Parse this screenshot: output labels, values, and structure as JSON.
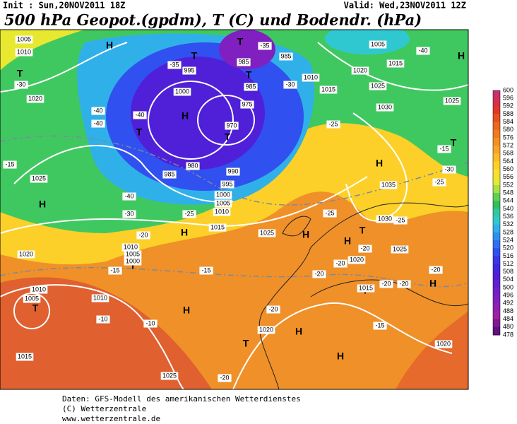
{
  "header": {
    "init": "Init : Sun,20NOV2011 18Z",
    "valid": "Valid: Wed,23NOV2011 12Z",
    "title": "500 hPa Geopot.(gpdm), T (C) und Bodendr. (hPa)"
  },
  "colorbar": {
    "levels": [
      600,
      596,
      592,
      588,
      584,
      580,
      576,
      572,
      568,
      564,
      560,
      556,
      552,
      548,
      544,
      540,
      536,
      532,
      528,
      524,
      520,
      516,
      512,
      508,
      504,
      500,
      496,
      492,
      488,
      484,
      480,
      478
    ],
    "colors": [
      "#c8306e",
      "#d8304a",
      "#e03828",
      "#e85020",
      "#ec6820",
      "#f07c20",
      "#f49020",
      "#f8a428",
      "#fcbc28",
      "#fcd028",
      "#f8e030",
      "#e8e830",
      "#a8e048",
      "#60d050",
      "#30c060",
      "#30c8a0",
      "#30c8d0",
      "#30b0e8",
      "#3090f0",
      "#3070f0",
      "#3050f0",
      "#3838e8",
      "#4028e0",
      "#5020d8",
      "#6020d0",
      "#7020c8",
      "#8020c0",
      "#9020b0",
      "#a020a0",
      "#801890",
      "#601080"
    ]
  },
  "pressure_centers": [
    "H",
    "T",
    "H",
    "T",
    "T",
    "T",
    "H",
    "T",
    "T",
    "H",
    "H",
    "H",
    "H",
    "T",
    "H",
    "T",
    "T",
    "H",
    "T",
    "H",
    "T",
    "H",
    "H",
    "T"
  ],
  "isobar_labels": [
    "1005",
    "1010",
    "1020",
    "995",
    "1000",
    "985",
    "985",
    "975",
    "970",
    "985",
    "990",
    "995",
    "1000",
    "1005",
    "1010",
    "1015",
    "980",
    "985",
    "1025",
    "1020",
    "1010",
    "1005",
    "1010",
    "1010",
    "1005",
    "1000",
    "1015",
    "1025",
    "1020",
    "1015",
    "1010",
    "1005",
    "1015",
    "1020",
    "1025",
    "1030",
    "1025",
    "1035",
    "1030",
    "1025",
    "1020",
    "1015",
    "1020",
    "1025"
  ],
  "temperature_labels": [
    "-35",
    "-35",
    "-40",
    "-30",
    "-30",
    "-40",
    "-40",
    "-40",
    "-15",
    "-30",
    "-25",
    "-15",
    "-40",
    "-30",
    "-25",
    "-20",
    "-25",
    "-25",
    "-20",
    "-20",
    "-20",
    "-20",
    "-20",
    "-20",
    "-20",
    "-15",
    "-15",
    "-10",
    "-10",
    "-15",
    "-25",
    "-20"
  ],
  "footer": {
    "source": "Daten: GFS-Modell des amerikanischen Wetterdienstes",
    "copyright": "(C) Wetterzentrale",
    "url": "www.wetterzentrale.de"
  }
}
